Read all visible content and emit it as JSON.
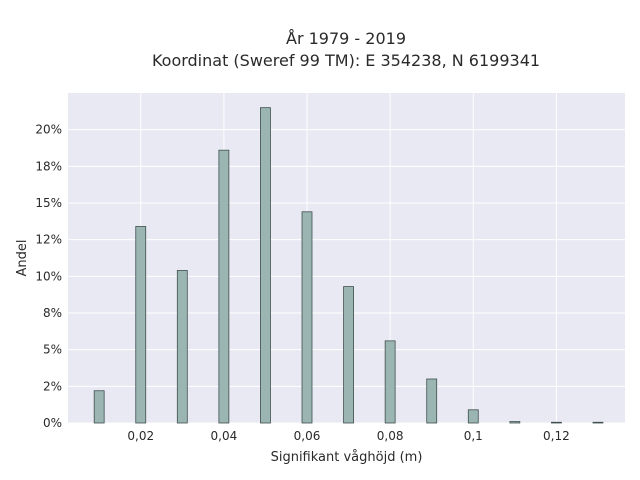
{
  "chart_data": {
    "type": "bar",
    "title_line1": "År 1979 - 2019",
    "title_line2": "Koordinat (Sweref 99 TM): E 354238, N 6199341",
    "xlabel": "Signifikant våghöjd (m)",
    "ylabel": "Andel",
    "xlim": [
      0.0025,
      0.1365
    ],
    "ylim": [
      0,
      22.5
    ],
    "x_ticks": [
      0.02,
      0.04,
      0.06,
      0.08,
      0.1,
      0.12
    ],
    "x_tick_labels": [
      "0,02",
      "0,04",
      "0,06",
      "0,08",
      "0,1",
      "0,12"
    ],
    "y_ticks": [
      0,
      2.5,
      5,
      7.5,
      10,
      12.5,
      15,
      17.5,
      20
    ],
    "y_tick_labels": [
      "0%",
      "2%",
      "5%",
      "8%",
      "10%",
      "12%",
      "15%",
      "18%",
      "20%"
    ],
    "grid": true,
    "bar_width": 0.0024,
    "x": [
      0.01,
      0.02,
      0.03,
      0.04,
      0.05,
      0.06,
      0.07,
      0.08,
      0.09,
      0.1,
      0.11,
      0.12,
      0.13
    ],
    "values": [
      2.2,
      13.4,
      10.4,
      18.6,
      21.5,
      14.4,
      9.3,
      5.6,
      3.0,
      0.9,
      0.1,
      0.05,
      0.05
    ],
    "colors": {
      "bar_fill": "#9bb5b3",
      "bar_stroke": "#3f4f4d",
      "plot_bg": "#e8e9f2",
      "grid": "#ffffff"
    }
  }
}
